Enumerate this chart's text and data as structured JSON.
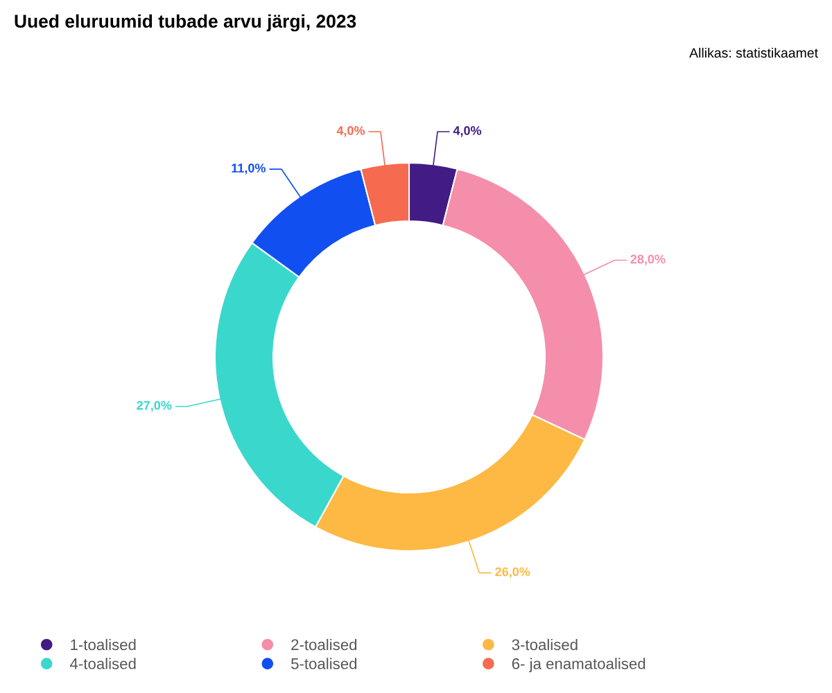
{
  "chart_data": {
    "type": "donut",
    "title": "Uued eluruumid tubade arvu järgi, 2023",
    "annotations": [
      "Allikas: statistikaamet"
    ],
    "categories": [
      "1-toalised",
      "2-toalised",
      "3-toalised",
      "4-toalised",
      "5-toalised",
      "6- ja enamatoalised"
    ],
    "values": [
      4.0,
      28.0,
      26.0,
      27.0,
      11.0,
      4.0
    ],
    "colors": [
      "#421c84",
      "#f58eaa",
      "#fdb943",
      "#3ad8cc",
      "#114ff0",
      "#f66a50"
    ],
    "value_labels": [
      "4,0%",
      "28,0%",
      "26,0%",
      "27,0%",
      "11,0%",
      "4,0%"
    ],
    "legend": "bottom"
  }
}
